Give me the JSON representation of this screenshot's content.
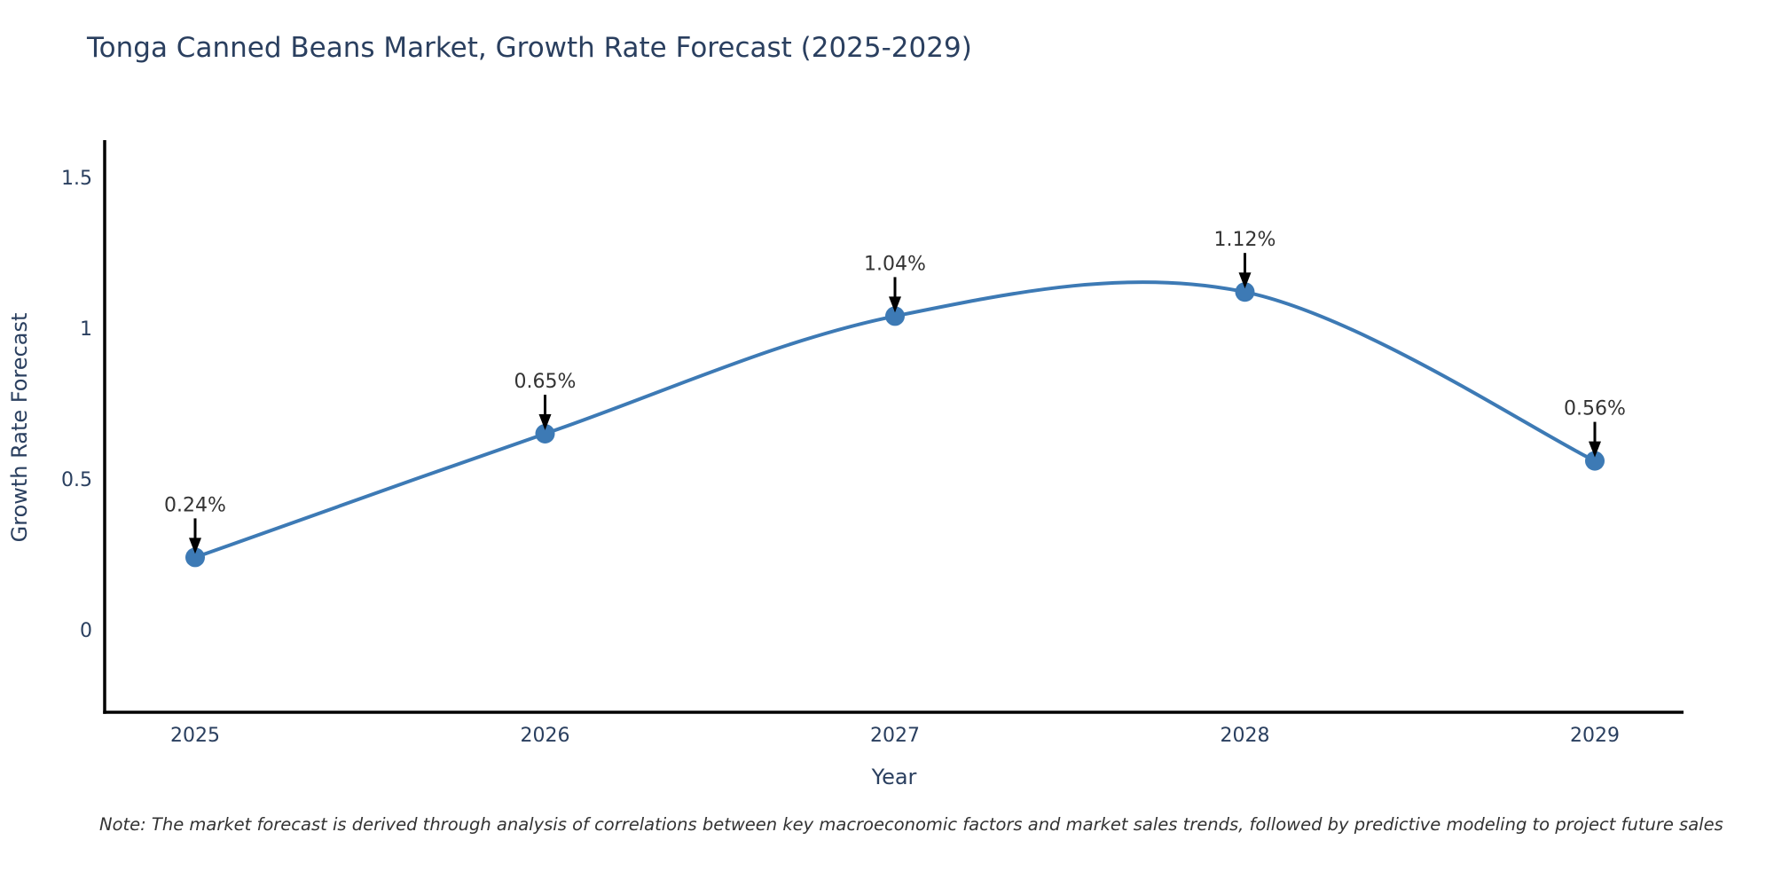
{
  "title": "Tonga Canned Beans Market, Growth Rate Forecast (2025-2029)",
  "note": "Note: The market forecast is derived through analysis of correlations between key macroeconomic factors and market sales trends, followed by predictive modeling to project future sales",
  "chart_data": {
    "type": "line",
    "line_shape": "spline",
    "title": "Tonga Canned Beans Market, Growth Rate Forecast (2025-2029)",
    "xlabel": "Year",
    "ylabel": "Growth Rate Forecast",
    "categories": [
      "2025",
      "2026",
      "2027",
      "2028",
      "2029"
    ],
    "series": [
      {
        "name": "Growth Rate Forecast",
        "values": [
          0.24,
          0.65,
          1.04,
          1.12,
          0.56
        ],
        "point_labels": [
          "0.24%",
          "0.65%",
          "1.04%",
          "1.12%",
          "0.56%"
        ]
      }
    ],
    "yticks": [
      0,
      0.5,
      1,
      1.5
    ],
    "ylim": [
      -0.27,
      1.62
    ],
    "grid": false,
    "legend": "none",
    "colors": {
      "line": "#3d7ab5",
      "marker": "#3d7ab5",
      "axis_line": "#000000",
      "tick_text": "#2a3f5f",
      "annotation": "#333333"
    }
  }
}
